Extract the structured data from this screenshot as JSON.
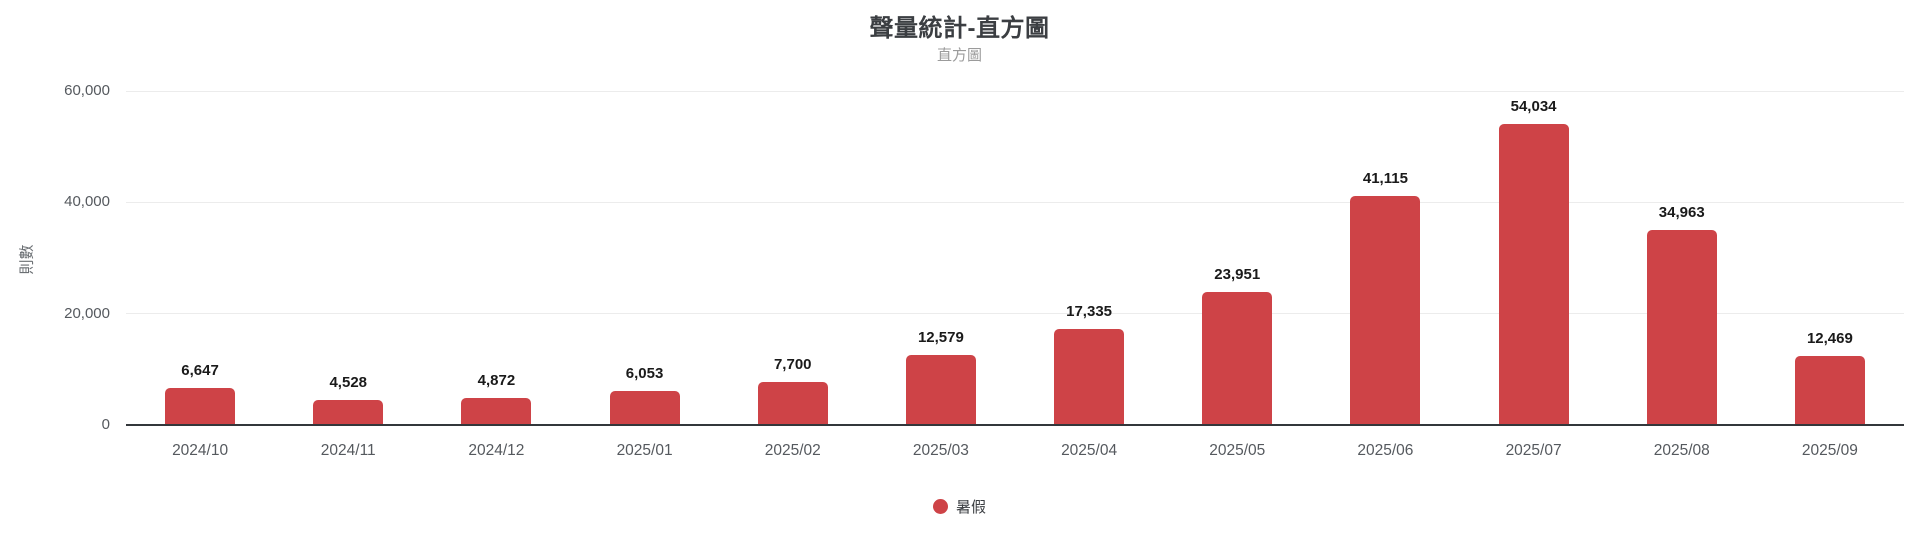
{
  "header": {
    "title": "聲量統計-直方圖",
    "subtitle": "直方圖"
  },
  "chart_data": {
    "type": "bar",
    "title": "聲量統計-直方圖",
    "subtitle": "直方圖",
    "categories": [
      "2024/10",
      "2024/11",
      "2024/12",
      "2025/01",
      "2025/02",
      "2025/03",
      "2025/04",
      "2025/05",
      "2025/06",
      "2025/07",
      "2025/08",
      "2025/09"
    ],
    "series": [
      {
        "name": "暑假",
        "color": "#ce4347",
        "values": [
          6647,
          4528,
          4872,
          6053,
          7700,
          12579,
          17335,
          23951,
          41115,
          54034,
          34963,
          12469
        ]
      }
    ],
    "value_labels": [
      "6,647",
      "4,528",
      "4,872",
      "6,053",
      "7,700",
      "12,579",
      "17,335",
      "23,951",
      "41,115",
      "54,034",
      "34,963",
      "12,469"
    ],
    "xlabel": "",
    "ylabel": "則數",
    "ylim": [
      0,
      60000
    ],
    "yticks": [
      0,
      20000,
      40000,
      60000
    ],
    "ytick_labels": [
      "0",
      "20,000",
      "40,000",
      "60,000"
    ],
    "grid": true,
    "legend_position": "bottom"
  },
  "colors": {
    "bar": "#ce4347",
    "title": "#3b3e42",
    "subtitle": "#9b9b9b",
    "axis_label": "#55595e",
    "gridline": "#ececec",
    "baseline": "#33373b",
    "value_label": "#1a1a1a"
  }
}
